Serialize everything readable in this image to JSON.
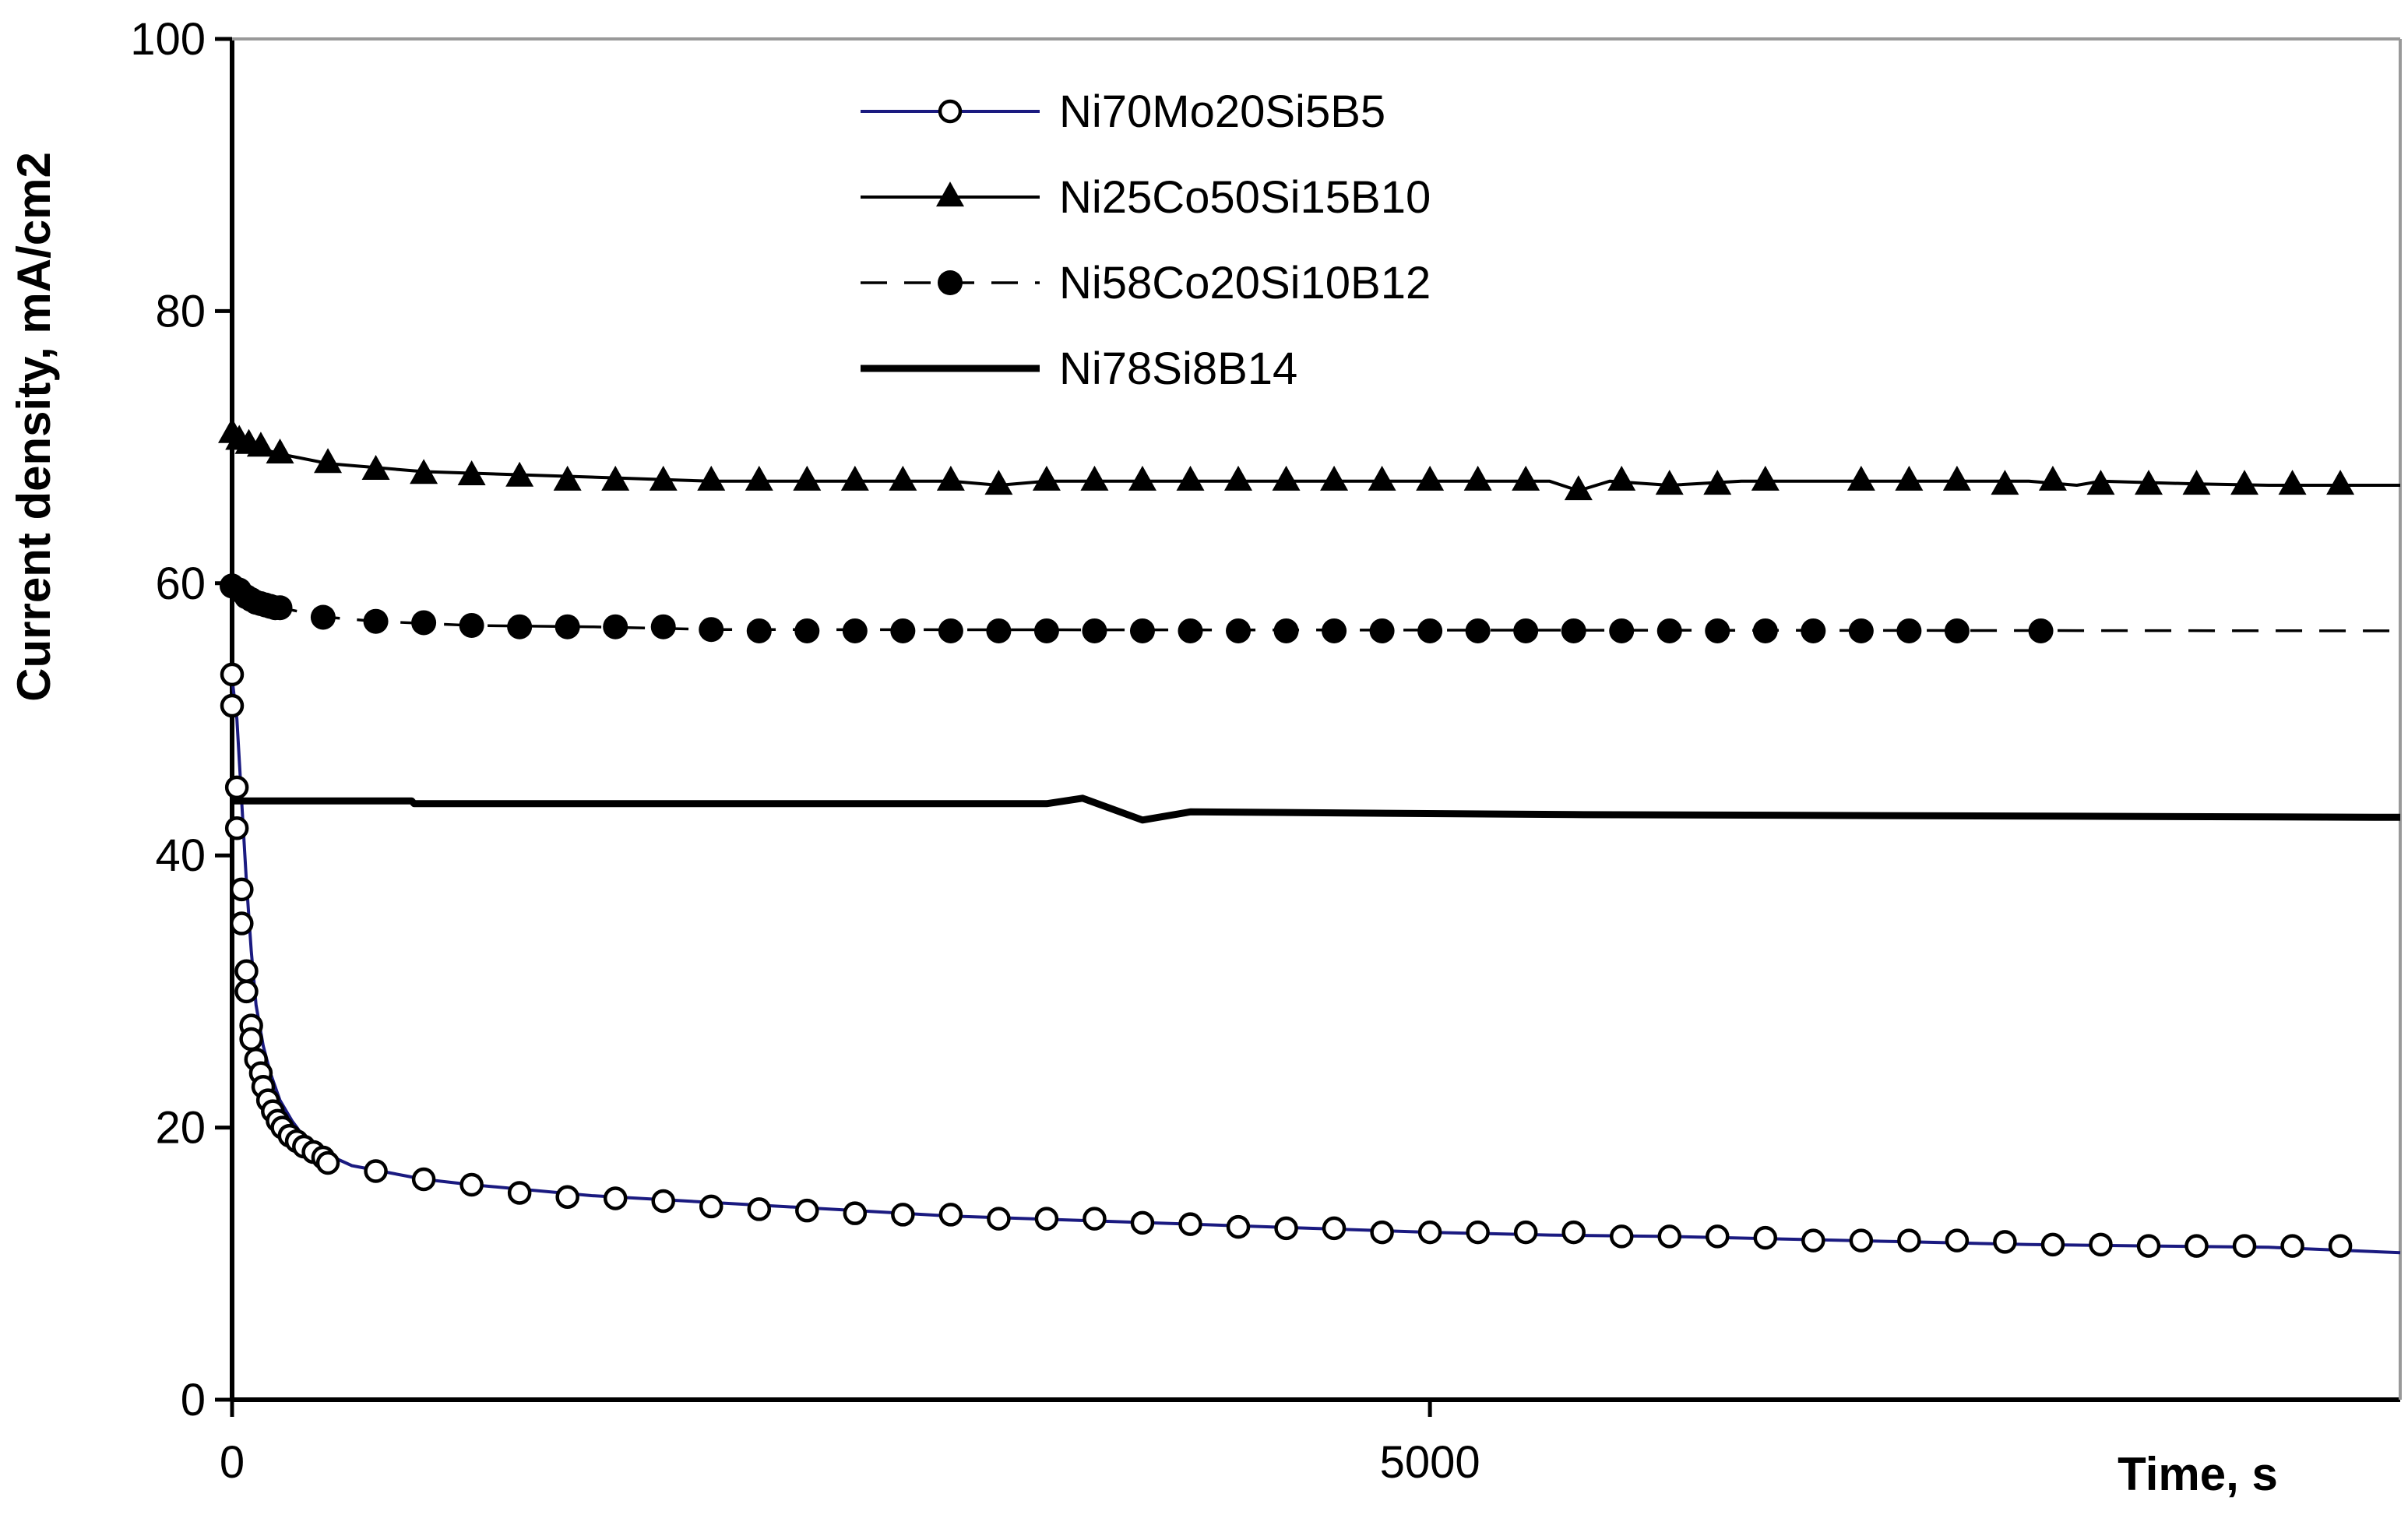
{
  "chart_data": {
    "type": "line",
    "title": "",
    "xlabel": "Time, s",
    "ylabel": "Current density, mA/cm2",
    "xlim": [
      0,
      9050
    ],
    "ylim": [
      0,
      100
    ],
    "x_ticks": [
      0,
      5000
    ],
    "y_ticks": [
      0,
      20,
      40,
      60,
      80,
      100
    ],
    "grid": false,
    "legend_position": "top-center",
    "series": [
      {
        "name": "Ni70Mo20Si5B5",
        "line_color": "#1a1a80",
        "dash": "solid",
        "marker": "open-circle",
        "line": [
          [
            0,
            53
          ],
          [
            20,
            50
          ],
          [
            40,
            44
          ],
          [
            60,
            38
          ],
          [
            80,
            33
          ],
          [
            100,
            29
          ],
          [
            130,
            26
          ],
          [
            160,
            24
          ],
          [
            200,
            22
          ],
          [
            250,
            20.5
          ],
          [
            300,
            19.3
          ],
          [
            400,
            18
          ],
          [
            500,
            17.2
          ],
          [
            800,
            16.2
          ],
          [
            1000,
            15.8
          ],
          [
            1500,
            15
          ],
          [
            2000,
            14.5
          ],
          [
            2500,
            14
          ],
          [
            3000,
            13.5
          ],
          [
            3500,
            13.2
          ],
          [
            4000,
            12.9
          ],
          [
            4500,
            12.6
          ],
          [
            5000,
            12.3
          ],
          [
            5500,
            12.1
          ],
          [
            6000,
            12
          ],
          [
            6500,
            11.8
          ],
          [
            7000,
            11.6
          ],
          [
            7500,
            11.4
          ],
          [
            8000,
            11.3
          ],
          [
            8500,
            11.2
          ],
          [
            9050,
            10.8
          ]
        ],
        "markers": [
          [
            0,
            53.3
          ],
          [
            0,
            51
          ],
          [
            20,
            45
          ],
          [
            20,
            42
          ],
          [
            40,
            37.5
          ],
          [
            40,
            35
          ],
          [
            60,
            31.5
          ],
          [
            60,
            30
          ],
          [
            80,
            27.5
          ],
          [
            80,
            26.5
          ],
          [
            100,
            25
          ],
          [
            120,
            24
          ],
          [
            130,
            23
          ],
          [
            150,
            22
          ],
          [
            170,
            21.2
          ],
          [
            190,
            20.5
          ],
          [
            210,
            20
          ],
          [
            240,
            19.4
          ],
          [
            270,
            19
          ],
          [
            300,
            18.6
          ],
          [
            340,
            18.2
          ],
          [
            380,
            17.8
          ],
          [
            400,
            17.4
          ],
          [
            600,
            16.8
          ],
          [
            800,
            16.2
          ],
          [
            1000,
            15.8
          ],
          [
            1200,
            15.2
          ],
          [
            1400,
            14.9
          ],
          [
            1600,
            14.8
          ],
          [
            1800,
            14.6
          ],
          [
            2000,
            14.2
          ],
          [
            2200,
            14
          ],
          [
            2400,
            13.9
          ],
          [
            2600,
            13.7
          ],
          [
            2800,
            13.6
          ],
          [
            3000,
            13.6
          ],
          [
            3200,
            13.3
          ],
          [
            3400,
            13.3
          ],
          [
            3600,
            13.3
          ],
          [
            3800,
            13
          ],
          [
            4000,
            12.9
          ],
          [
            4200,
            12.7
          ],
          [
            4400,
            12.6
          ],
          [
            4600,
            12.6
          ],
          [
            4800,
            12.3
          ],
          [
            5000,
            12.3
          ],
          [
            5200,
            12.3
          ],
          [
            5400,
            12.3
          ],
          [
            5600,
            12.3
          ],
          [
            5800,
            12
          ],
          [
            6000,
            12
          ],
          [
            6200,
            12
          ],
          [
            6400,
            11.9
          ],
          [
            6600,
            11.7
          ],
          [
            6800,
            11.7
          ],
          [
            7000,
            11.7
          ],
          [
            7200,
            11.7
          ],
          [
            7400,
            11.6
          ],
          [
            7600,
            11.4
          ],
          [
            7800,
            11.4
          ],
          [
            8000,
            11.3
          ],
          [
            8200,
            11.3
          ],
          [
            8400,
            11.3
          ],
          [
            8600,
            11.3
          ],
          [
            8800,
            11.3
          ]
        ]
      },
      {
        "name": "Ni25Co50Si15B10",
        "line_color": "#000000",
        "dash": "solid",
        "marker": "filled-triangle",
        "line": [
          [
            0,
            71
          ],
          [
            50,
            70.2
          ],
          [
            100,
            70
          ],
          [
            200,
            69.5
          ],
          [
            400,
            68.8
          ],
          [
            800,
            68.2
          ],
          [
            1500,
            67.8
          ],
          [
            2000,
            67.5
          ],
          [
            3000,
            67.5
          ],
          [
            3200,
            67.2
          ],
          [
            3400,
            67.5
          ],
          [
            5500,
            67.5
          ],
          [
            5620,
            66.8
          ],
          [
            5750,
            67.5
          ],
          [
            6000,
            67.2
          ],
          [
            6300,
            67.5
          ],
          [
            7500,
            67.5
          ],
          [
            7700,
            67.2
          ],
          [
            7800,
            67.5
          ],
          [
            8200,
            67.3
          ],
          [
            8500,
            67.2
          ],
          [
            9050,
            67.2
          ]
        ],
        "markers": [
          [
            0,
            71
          ],
          [
            30,
            70.5
          ],
          [
            70,
            70.2
          ],
          [
            120,
            70
          ],
          [
            200,
            69.5
          ],
          [
            400,
            68.8
          ],
          [
            600,
            68.3
          ],
          [
            800,
            68
          ],
          [
            1000,
            67.9
          ],
          [
            1200,
            67.8
          ],
          [
            1400,
            67.5
          ],
          [
            1600,
            67.5
          ],
          [
            1800,
            67.5
          ],
          [
            2000,
            67.5
          ],
          [
            2200,
            67.5
          ],
          [
            2400,
            67.5
          ],
          [
            2600,
            67.5
          ],
          [
            2800,
            67.5
          ],
          [
            3000,
            67.5
          ],
          [
            3200,
            67.2
          ],
          [
            3400,
            67.5
          ],
          [
            3600,
            67.5
          ],
          [
            3800,
            67.5
          ],
          [
            4000,
            67.5
          ],
          [
            4200,
            67.5
          ],
          [
            4400,
            67.5
          ],
          [
            4600,
            67.5
          ],
          [
            4800,
            67.5
          ],
          [
            5000,
            67.5
          ],
          [
            5200,
            67.5
          ],
          [
            5400,
            67.5
          ],
          [
            5620,
            66.8
          ],
          [
            5800,
            67.5
          ],
          [
            6000,
            67.2
          ],
          [
            6200,
            67.2
          ],
          [
            6400,
            67.5
          ],
          [
            6800,
            67.5
          ],
          [
            7000,
            67.5
          ],
          [
            7200,
            67.5
          ],
          [
            7400,
            67.2
          ],
          [
            7600,
            67.5
          ],
          [
            7800,
            67.2
          ],
          [
            8000,
            67.2
          ],
          [
            8200,
            67.2
          ],
          [
            8400,
            67.2
          ],
          [
            8600,
            67.2
          ],
          [
            8800,
            67.2
          ]
        ]
      },
      {
        "name": "Ni58Co20Si10B12",
        "line_color": "#000000",
        "dash": "dashed",
        "marker": "filled-circle",
        "line": [
          [
            0,
            59.8
          ],
          [
            50,
            59.3
          ],
          [
            100,
            58.8
          ],
          [
            200,
            58.2
          ],
          [
            400,
            57.5
          ],
          [
            600,
            57.2
          ],
          [
            1000,
            56.9
          ],
          [
            1500,
            56.8
          ],
          [
            2000,
            56.6
          ],
          [
            9050,
            56.5
          ]
        ],
        "markers": [
          [
            0,
            59.8
          ],
          [
            30,
            59.5
          ],
          [
            60,
            59
          ],
          [
            80,
            58.8
          ],
          [
            100,
            58.6
          ],
          [
            120,
            58.5
          ],
          [
            140,
            58.4
          ],
          [
            160,
            58.3
          ],
          [
            180,
            58.2
          ],
          [
            200,
            58.2
          ],
          [
            380,
            57.5
          ],
          [
            600,
            57.2
          ],
          [
            800,
            57.1
          ],
          [
            1000,
            56.9
          ],
          [
            1200,
            56.8
          ],
          [
            1400,
            56.8
          ],
          [
            1600,
            56.8
          ],
          [
            1800,
            56.8
          ],
          [
            2000,
            56.6
          ],
          [
            2200,
            56.5
          ],
          [
            2400,
            56.5
          ],
          [
            2600,
            56.5
          ],
          [
            2800,
            56.5
          ],
          [
            3000,
            56.5
          ],
          [
            3200,
            56.5
          ],
          [
            3400,
            56.5
          ],
          [
            3600,
            56.5
          ],
          [
            3800,
            56.5
          ],
          [
            4000,
            56.5
          ],
          [
            4200,
            56.5
          ],
          [
            4400,
            56.5
          ],
          [
            4600,
            56.5
          ],
          [
            4800,
            56.5
          ],
          [
            5000,
            56.5
          ],
          [
            5200,
            56.5
          ],
          [
            5400,
            56.5
          ],
          [
            5600,
            56.5
          ],
          [
            5800,
            56.5
          ],
          [
            6000,
            56.5
          ],
          [
            6200,
            56.5
          ],
          [
            6400,
            56.5
          ],
          [
            6600,
            56.5
          ],
          [
            6800,
            56.5
          ],
          [
            7000,
            56.5
          ],
          [
            7200,
            56.5
          ],
          [
            7550,
            56.5
          ]
        ]
      },
      {
        "name": "Ni78Si8B14",
        "line_color": "#000000",
        "dash": "solid-thick",
        "marker": "none",
        "line": [
          [
            0,
            44
          ],
          [
            750,
            44
          ],
          [
            760,
            43.8
          ],
          [
            3400,
            43.8
          ],
          [
            3550,
            44.2
          ],
          [
            3800,
            42.6
          ],
          [
            4000,
            43.2
          ],
          [
            5600,
            43
          ],
          [
            9050,
            42.8
          ]
        ],
        "markers": []
      }
    ]
  }
}
